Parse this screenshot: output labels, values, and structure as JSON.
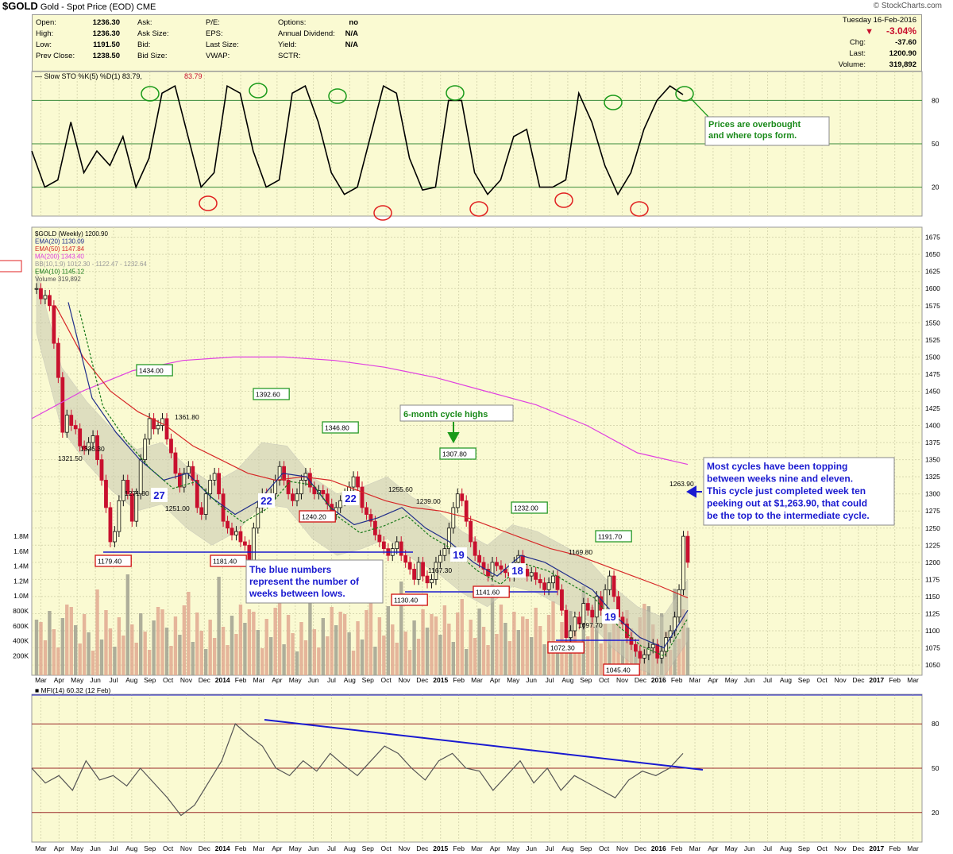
{
  "header": {
    "symbol": "$GOLD",
    "description": "Gold - Spot Price (EOD)",
    "exchange": "CME",
    "site": "© StockCharts.com"
  },
  "quote": {
    "labels": {
      "open": "Open:",
      "high": "High:",
      "low": "Low:",
      "prev_close": "Prev Close:",
      "ask": "Ask:",
      "ask_size": "Ask Size:",
      "bid": "Bid:",
      "bid_size": "Bid Size:",
      "pe": "P/E:",
      "eps": "EPS:",
      "last_trade_size": "Last Size:",
      "vwap": "VWAP:",
      "options": "Options:",
      "dividend": "Annual Dividend:",
      "yield": "Yield:",
      "sctr": "SCTR:",
      "chg": "Chg:",
      "last": "Last:",
      "volume": "Volume:"
    },
    "open": "1236.30",
    "high": "1236.30",
    "low": "1191.50",
    "prev_close": "1238.50",
    "options": "no",
    "dividend": "N/A",
    "yield": "N/A",
    "date": "Tuesday  16-Feb-2016",
    "pct_change": "-3.04%",
    "chg": "-37.60",
    "last": "1200.90",
    "volume": "319,892",
    "down_color": "#c8102e"
  },
  "stochastic": {
    "legend": "Slow STO %K(5) %D(1) 83.79,",
    "legend_value": "83.79",
    "levels": [
      "80",
      "50",
      "20"
    ],
    "annotation": [
      "Prices are overbought",
      "and where tops form."
    ]
  },
  "price_panel": {
    "legend": [
      {
        "text": "$GOLD (Weekly) 1200.90",
        "color": "#000000"
      },
      {
        "text": "EMA(20) 1130.09",
        "color": "#1f2d8a"
      },
      {
        "text": "EMA(50) 1147.84",
        "color": "#d62828"
      },
      {
        "text": "MA(200) 1343.40",
        "color": "#e040e0"
      },
      {
        "text": "BB(10,1.9) 1012.30 - 1122.47 - 1232.64",
        "color": "#999999"
      },
      {
        "text": "EMA(10) 1145.12",
        "color": "#1a7a1a"
      },
      {
        "text": "Volume 319,892",
        "color": "#555555"
      }
    ],
    "y_ticks": [
      "1675",
      "1650",
      "1625",
      "1600",
      "1575",
      "1550",
      "1525",
      "1500",
      "1475",
      "1450",
      "1425",
      "1400",
      "1375",
      "1350",
      "1325",
      "1300",
      "1275",
      "1250",
      "1225",
      "1200",
      "1175",
      "1150",
      "1125",
      "1100",
      "1075",
      "1050"
    ],
    "volume_ticks": [
      "1.8M",
      "1.6M",
      "1.4M",
      "1.2M",
      "1.0M",
      "800K",
      "600K",
      "400K",
      "200K"
    ],
    "annotations": {
      "cycle_highs": "6-month cycle highs",
      "blue_numbers": [
        "The blue numbers",
        "represent the number of",
        "weeks between lows."
      ],
      "cycles": [
        "Most cycles have been topping",
        "between weeks nine and eleven.",
        "This cycle just completed week ten",
        "peeking out at $1,263.90, that could",
        "be the top to the intermediate cycle."
      ]
    },
    "green_boxes": [
      "1434.00",
      "1392.60",
      "1346.80",
      "1307.80",
      "1232.00",
      "1191.70"
    ],
    "red_boxes": [
      "1179.40",
      "1181.40",
      "1240.20",
      "1130.40",
      "1141.60",
      "1072.30",
      "1045.40"
    ],
    "plain_labels": [
      "1336.30",
      "1321.50",
      "1361.80",
      "1271.80",
      "1251.00",
      "1255.60",
      "1239.00",
      "1167.30",
      "1169.80",
      "1097.70",
      "1263.90"
    ],
    "cycle_counts": [
      "27",
      "22",
      "22",
      "19",
      "18",
      "19"
    ]
  },
  "x_axis": {
    "labels": [
      "Mar",
      "Apr",
      "May",
      "Jun",
      "Jul",
      "Aug",
      "Sep",
      "Oct",
      "Nov",
      "Dec",
      "2014",
      "Feb",
      "Mar",
      "Apr",
      "May",
      "Jun",
      "Jul",
      "Aug",
      "Sep",
      "Oct",
      "Nov",
      "Dec",
      "2015",
      "Feb",
      "Mar",
      "Apr",
      "May",
      "Jun",
      "Jul",
      "Aug",
      "Sep",
      "Oct",
      "Nov",
      "Dec",
      "2016",
      "Feb",
      "Mar",
      "Apr",
      "May",
      "Jun",
      "Jul",
      "Aug",
      "Sep",
      "Oct",
      "Nov",
      "Dec",
      "2017",
      "Feb",
      "Mar"
    ]
  },
  "mfi": {
    "legend": "MFI(14) 60.32 (12 Feb)",
    "levels": [
      "80",
      "50",
      "20"
    ]
  },
  "colors": {
    "panel_bg": "#fafad2",
    "up": "#111111",
    "down": "#c8102e",
    "ema20": "#1f2d8a",
    "ema50": "#d62828",
    "ma200": "#e040e0",
    "ema10": "#1a7a1a",
    "grid": "#d8d8b0",
    "green_box": "#2a9a2a",
    "red_box": "#d01010",
    "blue_text": "#1a1ad0"
  },
  "chart_data": {
    "type": "line",
    "title": "$GOLD Gold - Spot Price (EOD) CME",
    "x_range": [
      "2013-03",
      "2017-03"
    ],
    "price_ylim": [
      1035,
      1685
    ],
    "stochastic_ylim": [
      0,
      100
    ],
    "mfi_ylim": [
      0,
      100
    ],
    "series": [
      {
        "name": "$GOLD (Weekly)",
        "values": [
          1600,
          1585,
          1590,
          1575,
          1520,
          1470,
          1390,
          1415,
          1400,
          1395,
          1370,
          1365,
          1375,
          1385,
          1350,
          1320,
          1280,
          1230,
          1245,
          1290,
          1320,
          1300,
          1260,
          1300,
          1350,
          1380,
          1410,
          1395,
          1400,
          1410,
          1380,
          1360,
          1330,
          1310,
          1330,
          1340,
          1320,
          1280,
          1270,
          1300,
          1320,
          1330,
          1300,
          1260,
          1250,
          1240,
          1245,
          1230,
          1225,
          1200,
          1250,
          1280,
          1300,
          1290,
          1300,
          1320,
          1340,
          1320,
          1300,
          1290,
          1300,
          1320,
          1330,
          1310,
          1300,
          1305,
          1300,
          1285,
          1270,
          1280,
          1290,
          1300,
          1310,
          1325,
          1310,
          1280,
          1270,
          1260,
          1240,
          1230,
          1220,
          1210,
          1220,
          1230,
          1210,
          1200,
          1190,
          1175,
          1200,
          1180,
          1170,
          1175,
          1200,
          1210,
          1220,
          1250,
          1280,
          1300,
          1290,
          1260,
          1230,
          1210,
          1200,
          1190,
          1180,
          1200,
          1195,
          1190,
          1185,
          1180,
          1200,
          1210,
          1190,
          1180,
          1185,
          1175,
          1170,
          1160,
          1170,
          1180,
          1160,
          1130,
          1090,
          1100,
          1120,
          1110,
          1140,
          1130,
          1120,
          1150,
          1130,
          1160,
          1180,
          1150,
          1120,
          1110,
          1090,
          1080,
          1070,
          1060,
          1065,
          1075,
          1080,
          1060,
          1070,
          1090,
          1100,
          1120,
          1160,
          1238,
          1200
        ]
      },
      {
        "name": "EMA(20)",
        "values": [
          1580,
          1440,
          1390,
          1350,
          1320,
          1330,
          1295,
          1270,
          1290,
          1330,
          1325,
          1280,
          1255,
          1265,
          1280,
          1250,
          1230,
          1200,
          1180,
          1210,
          1200,
          1180,
          1160,
          1120,
          1090,
          1075,
          1130
        ]
      },
      {
        "name": "EMA(50)",
        "values": [
          1575,
          1500,
          1450,
          1420,
          1400,
          1370,
          1350,
          1330,
          1320,
          1325,
          1320,
          1305,
          1290,
          1280,
          1275,
          1265,
          1250,
          1235,
          1220,
          1210,
          1195,
          1180,
          1165,
          1148
        ]
      },
      {
        "name": "MA(200)",
        "values": [
          1410,
          1450,
          1480,
          1495,
          1500,
          1500,
          1495,
          1485,
          1470,
          1450,
          1430,
          1400,
          1360,
          1343
        ]
      },
      {
        "name": "Slow STO %K(5)",
        "values": [
          45,
          20,
          25,
          65,
          30,
          45,
          35,
          55,
          20,
          40,
          85,
          90,
          55,
          20,
          30,
          90,
          85,
          45,
          20,
          25,
          85,
          90,
          65,
          30,
          15,
          20,
          55,
          90,
          85,
          40,
          18,
          20,
          80,
          80,
          30,
          15,
          25,
          55,
          60,
          20,
          20,
          25,
          85,
          65,
          35,
          15,
          30,
          60,
          80,
          90,
          84
        ]
      },
      {
        "name": "MFI(14)",
        "values": [
          50,
          40,
          45,
          35,
          55,
          42,
          45,
          38,
          50,
          40,
          30,
          18,
          25,
          40,
          55,
          80,
          72,
          65,
          50,
          45,
          55,
          48,
          60,
          52,
          45,
          55,
          65,
          60,
          50,
          42,
          55,
          60,
          50,
          48,
          35,
          45,
          55,
          40,
          50,
          35,
          45,
          40,
          35,
          30,
          42,
          48,
          45,
          50,
          60
        ]
      }
    ]
  }
}
